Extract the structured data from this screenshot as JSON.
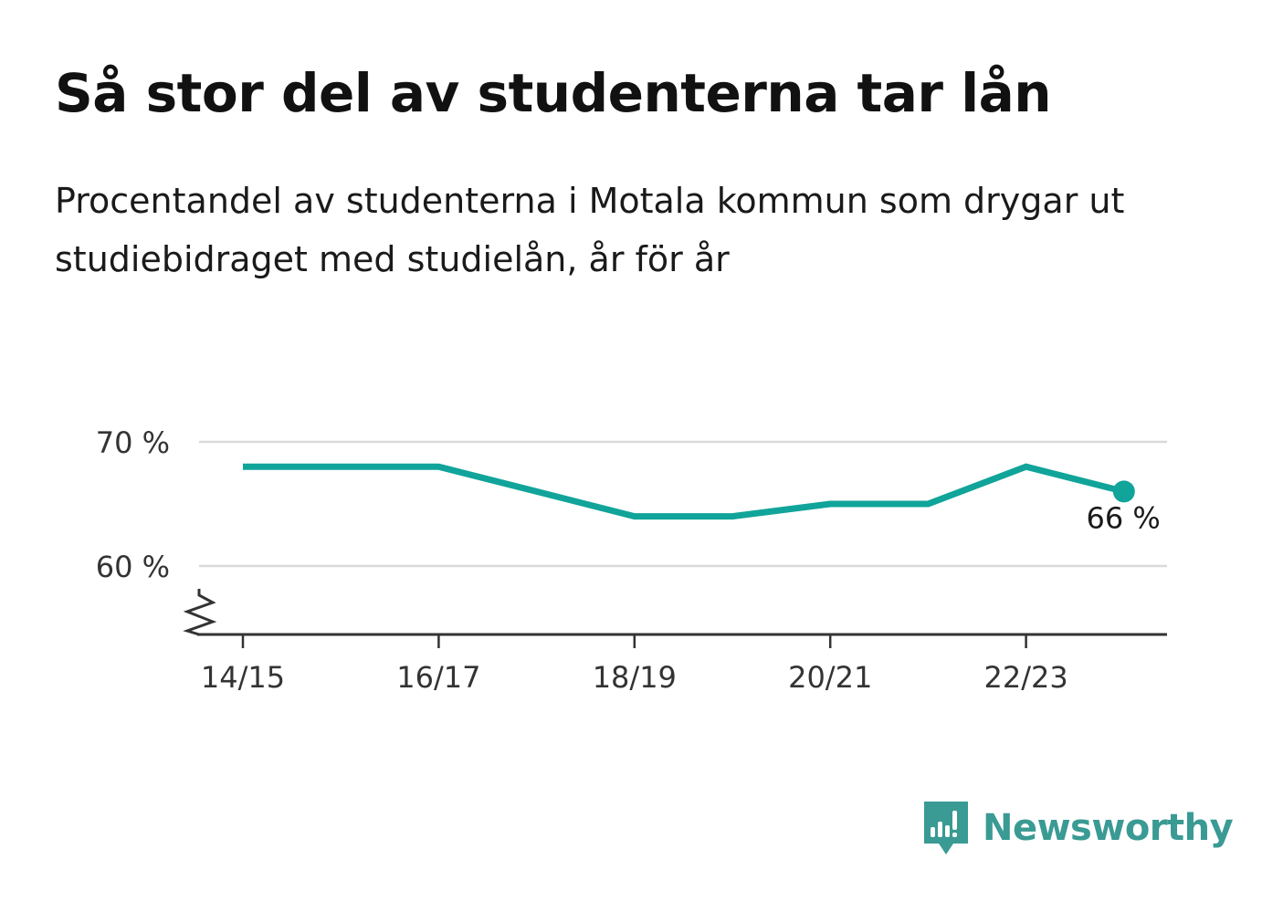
{
  "title": "Så stor del av studenterna tar lån",
  "subtitle": "Procentandel av studenterna i Motala kommun som drygar ut studiebidraget med studielån, år för år",
  "brand": {
    "name": "Newsworthy",
    "color": "#3a9a94"
  },
  "chart_data": {
    "type": "line",
    "title": "",
    "xlabel": "",
    "ylabel": "",
    "x": [
      "14/15",
      "15/16",
      "16/17",
      "17/18",
      "18/19",
      "19/20",
      "20/21",
      "21/22",
      "22/23",
      "23/24"
    ],
    "x_tick_labels": [
      "14/15",
      "16/17",
      "18/19",
      "20/21",
      "22/23"
    ],
    "series": [
      {
        "values": [
          68,
          68,
          68,
          66,
          64,
          64,
          65,
          65,
          68,
          66
        ],
        "color": "#10a49a"
      }
    ],
    "y_ticks": [
      60,
      70
    ],
    "y_tick_labels": [
      "60 %",
      "70 %"
    ],
    "ylim": [
      55,
      70
    ],
    "y_axis_broken": true,
    "grid": true,
    "last_point_label": "66 %"
  }
}
